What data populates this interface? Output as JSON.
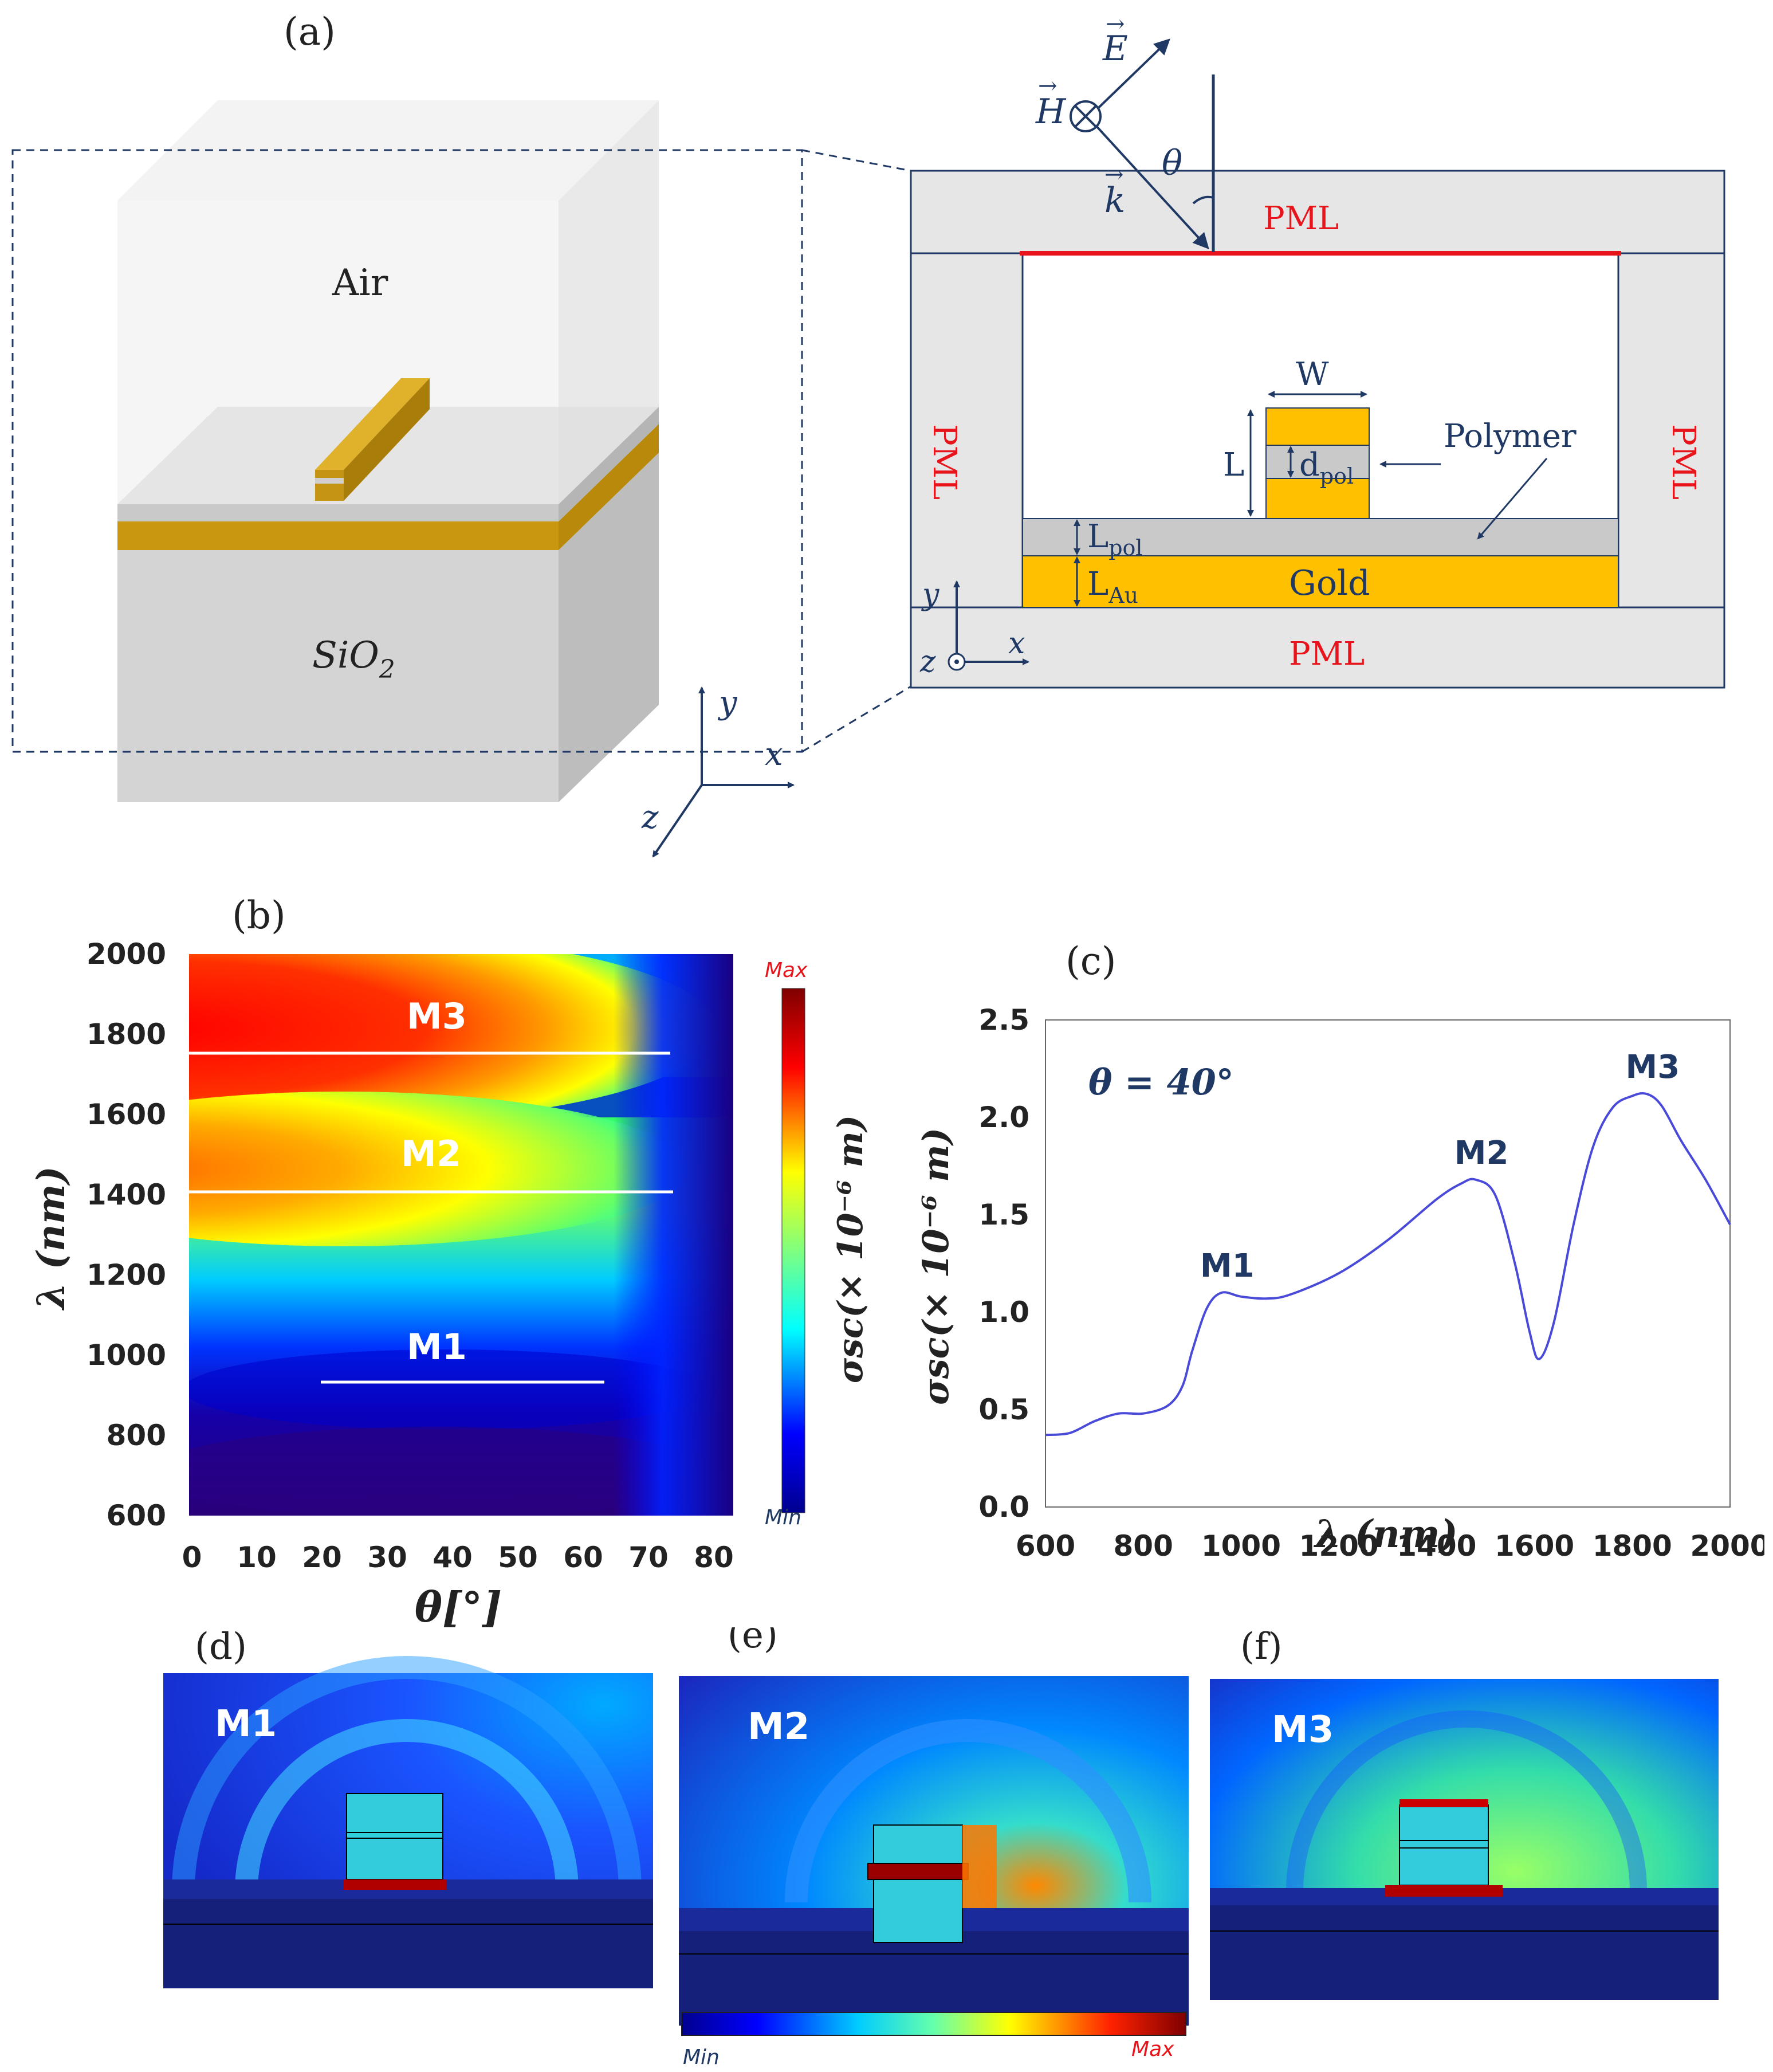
{
  "panels": {
    "a": "(a)",
    "b": "(b)",
    "c": "(c)",
    "d": "(d)",
    "e": "(e)",
    "f": "(f)"
  },
  "panel_a": {
    "air_label": "Air",
    "sio2_label": "SiO",
    "sio2_sub": "2",
    "axis_x": "x",
    "axis_y": "y",
    "axis_z": "z",
    "pml_top": "PML",
    "pml_left": "PML",
    "pml_right": "PML",
    "pml_bottom": "PML",
    "E_label": "E",
    "H_label": "H",
    "k_label": "k",
    "theta_label": "θ",
    "W_label": "W",
    "L_label": "L",
    "dpol_label": "d",
    "dpol_sub": "pol",
    "Lpol_label": "L",
    "Lpol_sub": "pol",
    "LAu_label": "L",
    "LAu_sub": "Au",
    "gold_label": "Gold",
    "polymer_label": "Polymer",
    "xs_axis_x": "x",
    "xs_axis_y": "y",
    "xs_axis_z": "z"
  },
  "panel_b": {
    "y_ticks": [
      "2000",
      "1800",
      "1600",
      "1400",
      "1200",
      "1000",
      "800",
      "600"
    ],
    "x_ticks": [
      "0",
      "10",
      "20",
      "30",
      "40",
      "50",
      "60",
      "70",
      "80"
    ],
    "ylabel": "λ (nm)",
    "xlabel": "θ[°]",
    "mode_labels": [
      "M3",
      "M2",
      "M1"
    ],
    "colorbar_max": "Max",
    "colorbar_min": "Min",
    "colorbar_label": "σsc(× 10⁻⁶ m)"
  },
  "chart_data": {
    "type": "line",
    "title": "θ = 40°",
    "xlabel": "λ (nm)",
    "ylabel": "σsc(× 10⁻⁶ m)",
    "xlim": [
      600,
      2000
    ],
    "ylim": [
      0.0,
      2.5
    ],
    "x_ticks": [
      "600",
      "800",
      "1000",
      "1200",
      "1400",
      "1600",
      "1800",
      "2000"
    ],
    "y_ticks": [
      "0.0",
      "0.5",
      "1.0",
      "1.5",
      "2.0",
      "2.5"
    ],
    "x": [
      600,
      650,
      700,
      750,
      800,
      850,
      880,
      900,
      930,
      960,
      1000,
      1050,
      1100,
      1200,
      1300,
      1400,
      1450,
      1480,
      1520,
      1560,
      1590,
      1610,
      1640,
      1680,
      1720,
      1760,
      1800,
      1830,
      1860,
      1900,
      1950,
      2000
    ],
    "y": [
      0.37,
      0.38,
      0.44,
      0.48,
      0.48,
      0.52,
      0.62,
      0.8,
      1.02,
      1.1,
      1.08,
      1.07,
      1.09,
      1.2,
      1.37,
      1.58,
      1.66,
      1.68,
      1.6,
      1.25,
      0.9,
      0.76,
      0.95,
      1.45,
      1.85,
      2.05,
      2.11,
      2.12,
      2.06,
      1.88,
      1.68,
      1.45
    ],
    "annotations": [
      {
        "label": "M1",
        "x": 960,
        "y": 1.1
      },
      {
        "label": "M2",
        "x": 1480,
        "y": 1.68
      },
      {
        "label": "M3",
        "x": 1830,
        "y": 2.12
      }
    ]
  },
  "field_maps": {
    "d_label": "M1",
    "e_label": "M2",
    "f_label": "M3",
    "colorbar_min": "Min",
    "colorbar_max": "Max"
  }
}
